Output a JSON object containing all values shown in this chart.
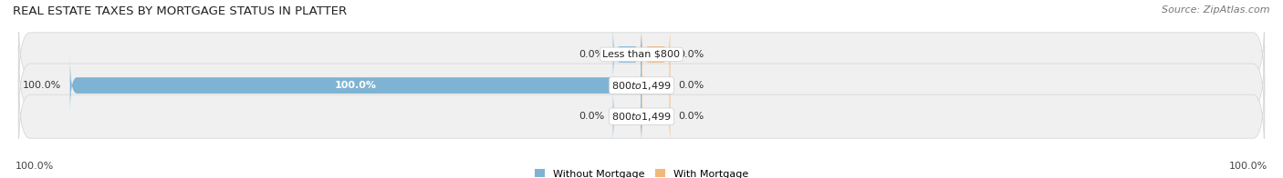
{
  "title": "REAL ESTATE TAXES BY MORTGAGE STATUS IN PLATTER",
  "source": "Source: ZipAtlas.com",
  "categories": [
    "Less than $800",
    "$800 to $1,499",
    "$800 to $1,499"
  ],
  "without_mortgage": [
    0.0,
    100.0,
    0.0
  ],
  "with_mortgage": [
    0.0,
    0.0,
    0.0
  ],
  "bar_color_without": "#7fb3d3",
  "bar_color_with": "#f0b87a",
  "bg_row_color": "#f0f0f0",
  "bg_row_edge": "#d8d8d8",
  "axis_label_left": "100.0%",
  "axis_label_right": "100.0%",
  "legend_without": "Without Mortgage",
  "legend_with": "With Mortgage",
  "title_fontsize": 9.5,
  "source_fontsize": 8,
  "stub_size": 5.0,
  "max_val": 100.0
}
